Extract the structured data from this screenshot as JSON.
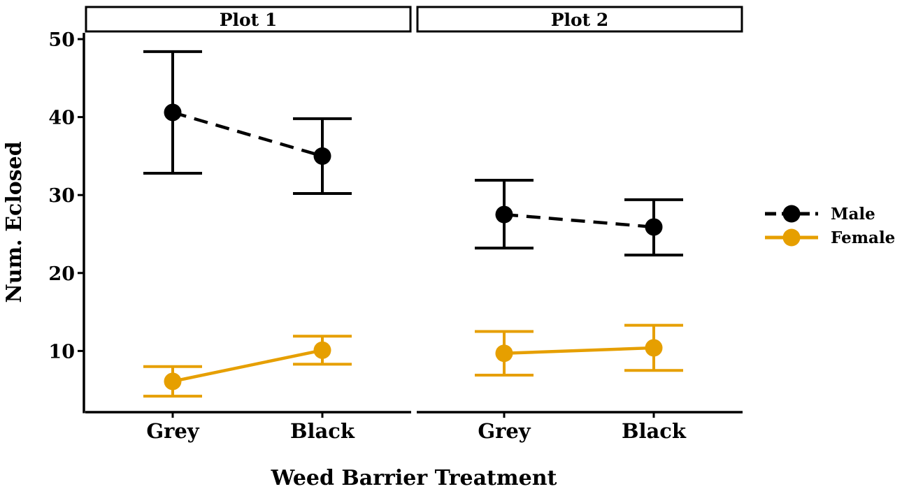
{
  "chart_data": {
    "type": "line",
    "xlabel": "Weed Barrier Treatment",
    "ylabel": "Num. Eclosed",
    "ylim": [
      0,
      50
    ],
    "yticks": [
      10,
      20,
      30,
      40,
      50
    ],
    "categories": [
      "Grey",
      "Black"
    ],
    "legend_position": "right",
    "grid": false,
    "panels": [
      {
        "label": "Plot 1",
        "series": [
          {
            "name": "Male",
            "color": "#000000",
            "linestyle": "dashed",
            "values": [
              40.6,
              35.0
            ],
            "lower": [
              32.8,
              30.2
            ],
            "upper": [
              48.4,
              39.8
            ]
          },
          {
            "name": "Female",
            "color": "#E69F00",
            "linestyle": "solid",
            "values": [
              6.1,
              10.1
            ],
            "lower": [
              4.2,
              8.3
            ],
            "upper": [
              8.0,
              11.9
            ]
          }
        ]
      },
      {
        "label": "Plot 2",
        "series": [
          {
            "name": "Male",
            "color": "#000000",
            "linestyle": "dashed",
            "values": [
              27.5,
              25.9
            ],
            "lower": [
              23.2,
              22.3
            ],
            "upper": [
              31.9,
              29.4
            ]
          },
          {
            "name": "Female",
            "color": "#E69F00",
            "linestyle": "solid",
            "values": [
              9.7,
              10.4
            ],
            "lower": [
              6.9,
              7.5
            ],
            "upper": [
              12.5,
              13.3
            ]
          }
        ]
      }
    ]
  }
}
